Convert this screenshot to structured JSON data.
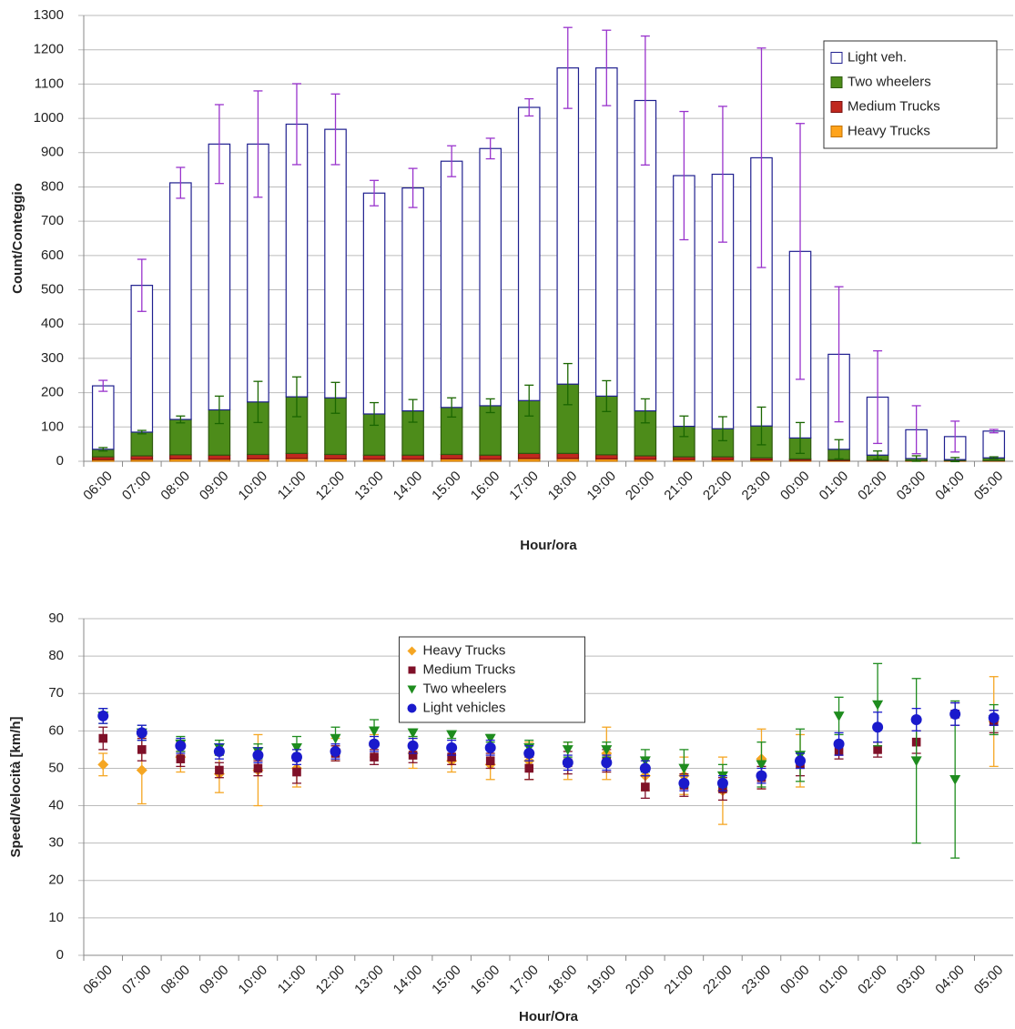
{
  "chart_data": [
    {
      "type": "bar",
      "stacked": true,
      "grid": true,
      "legend": "upper right",
      "ylabel": "Count/Conteggio",
      "xlabel": "Hour/ora",
      "categories": [
        "06:00",
        "07:00",
        "08:00",
        "09:00",
        "10:00",
        "11:00",
        "12:00",
        "13:00",
        "14:00",
        "15:00",
        "16:00",
        "17:00",
        "18:00",
        "19:00",
        "20:00",
        "21:00",
        "22:00",
        "23:00",
        "00:00",
        "01:00",
        "02:00",
        "03:00",
        "04:00",
        "05:00"
      ],
      "ylim": [
        0,
        1300
      ],
      "yticks": [
        0,
        100,
        200,
        300,
        400,
        500,
        600,
        700,
        800,
        900,
        1000,
        1100,
        1200,
        1300
      ],
      "series": [
        {
          "name": "Light veh.",
          "color": "#ffffff",
          "stroke": "#1f1f8f",
          "error_color": "#9933cc",
          "values": [
            185,
            428,
            690,
            775,
            752,
            795,
            783,
            644,
            650,
            718,
            750,
            855,
            922,
            957,
            905,
            731,
            742,
            782,
            544,
            277,
            169,
            84,
            67,
            78
          ],
          "errors": [
            16,
            76,
            45,
            115,
            155,
            118,
            103,
            37,
            57,
            45,
            30,
            25,
            118,
            110,
            188,
            187,
            198,
            320,
            373,
            197,
            135,
            70,
            45,
            5
          ]
        },
        {
          "name": "Two wheelers",
          "color": "#4d8c1a",
          "stroke": "#2d5a0e",
          "error_color": "#1a6600",
          "values": [
            22,
            69,
            103,
            132,
            153,
            165,
            165,
            120,
            129,
            137,
            144,
            154,
            202,
            171,
            131,
            89,
            82,
            93,
            61,
            30,
            15,
            6,
            3,
            8
          ],
          "errors": [
            5,
            5,
            10,
            40,
            60,
            58,
            45,
            33,
            33,
            28,
            20,
            45,
            60,
            45,
            35,
            30,
            35,
            55,
            45,
            28,
            12,
            8,
            6,
            3
          ]
        },
        {
          "name": "Medium Trucks",
          "color": "#c0281e",
          "stroke": "#7a1010",
          "values": [
            8,
            10,
            12,
            12,
            13,
            15,
            13,
            12,
            12,
            13,
            12,
            15,
            15,
            12,
            10,
            8,
            8,
            6,
            4,
            3,
            2,
            1,
            1,
            1
          ]
        },
        {
          "name": "Heavy Trucks",
          "color": "#ffa31a",
          "stroke": "#c07000",
          "values": [
            5,
            6,
            7,
            6,
            7,
            8,
            7,
            6,
            6,
            7,
            6,
            8,
            8,
            7,
            6,
            5,
            5,
            4,
            3,
            2,
            1,
            1,
            1,
            1
          ]
        }
      ]
    },
    {
      "type": "scatter",
      "grid": true,
      "legend": "upper center",
      "ylabel": "Speed/Velocità  [km/h]",
      "xlabel": "Hour/Ora",
      "categories": [
        "06:00",
        "07:00",
        "08:00",
        "09:00",
        "10:00",
        "11:00",
        "12:00",
        "13:00",
        "14:00",
        "15:00",
        "16:00",
        "17:00",
        "18:00",
        "19:00",
        "20:00",
        "21:00",
        "22:00",
        "23:00",
        "00:00",
        "01:00",
        "02:00",
        "03:00",
        "04:00",
        "05:00"
      ],
      "ylim": [
        0,
        90
      ],
      "yticks": [
        0,
        10,
        20,
        30,
        40,
        50,
        60,
        70,
        80,
        90
      ],
      "series": [
        {
          "name": "Heavy Trucks",
          "color": "#f5a623",
          "marker": "diamond",
          "values": [
            51,
            49.5,
            53,
            48.5,
            49.5,
            50,
            55,
            56,
            54,
            52,
            51,
            52,
            52,
            54,
            48,
            48,
            44,
            52.5,
            52,
            null,
            null,
            null,
            null,
            62.5
          ],
          "errors": [
            3,
            9,
            4,
            5,
            9.5,
            5,
            3,
            3,
            4,
            3,
            4,
            5,
            5,
            7,
            4,
            5,
            9,
            8,
            7,
            null,
            null,
            null,
            null,
            12
          ]
        },
        {
          "name": "Medium Trucks",
          "color": "#7f1028",
          "marker": "square",
          "values": [
            58,
            55,
            52.5,
            49.5,
            50,
            49,
            54,
            53,
            53.5,
            53,
            52,
            50,
            51.5,
            52,
            45,
            45.5,
            44.5,
            47.5,
            51,
            54.5,
            55,
            57,
            64.5,
            62.5
          ],
          "errors": [
            3,
            3,
            2,
            2,
            2,
            3,
            2,
            2,
            2,
            2,
            2,
            3,
            3,
            3,
            3,
            3,
            3,
            3,
            3,
            2,
            2,
            3,
            3,
            3
          ]
        },
        {
          "name": "Two wheelers",
          "color": "#1e8c1e",
          "marker": "triangle",
          "values": [
            64,
            59.5,
            56.5,
            55.5,
            54.5,
            55.5,
            58,
            60,
            59.5,
            59,
            58,
            55.5,
            55,
            55,
            52,
            50,
            48,
            51,
            53.5,
            64,
            67,
            52,
            47,
            63
          ],
          "errors": [
            2,
            2,
            2,
            2,
            2,
            3,
            3,
            3,
            1,
            1,
            1,
            2,
            2,
            2,
            3,
            5,
            3,
            6,
            7,
            5,
            11,
            22,
            21,
            4
          ]
        },
        {
          "name": "Light vehicles",
          "color": "#1a1acc",
          "marker": "circle",
          "values": [
            64,
            59.5,
            56,
            54.5,
            53.5,
            53,
            54.5,
            56.5,
            56,
            55.5,
            55.5,
            54,
            51.5,
            51.5,
            50,
            46,
            46,
            48,
            52,
            56.5,
            61,
            63,
            64.5,
            63.5
          ],
          "errors": [
            2,
            2,
            2,
            2,
            2,
            2,
            2,
            2,
            2,
            2,
            2,
            2,
            2,
            2,
            2,
            2,
            2,
            2,
            2,
            3,
            4,
            3,
            3,
            2
          ]
        }
      ]
    }
  ]
}
